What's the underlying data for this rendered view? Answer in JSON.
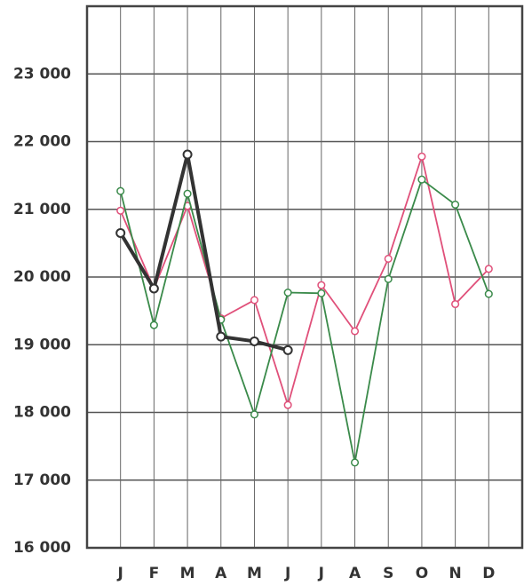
{
  "chart_data": {
    "type": "line",
    "categories": [
      "J",
      "F",
      "M",
      "A",
      "M",
      "J",
      "J",
      "A",
      "S",
      "O",
      "N",
      "D"
    ],
    "series": [
      {
        "color": "#e0507a",
        "values": [
          20980,
          19830,
          21050,
          19390,
          19660,
          18110,
          19880,
          19200,
          20270,
          21780,
          19600,
          20120
        ]
      },
      {
        "color": "#3a8a4a",
        "values": [
          21270,
          19290,
          21230,
          19370,
          17970,
          19770,
          19760,
          17260,
          19970,
          21440,
          21070,
          19750
        ]
      },
      {
        "color": "#333333",
        "values": [
          20650,
          19830,
          21810,
          19120,
          19050,
          18920,
          null,
          null,
          null,
          null,
          null,
          null
        ]
      }
    ],
    "ylim": [
      16000,
      24000
    ],
    "yticks": [
      {
        "value": 16000,
        "label": "16 000"
      },
      {
        "value": 17000,
        "label": "17 000"
      },
      {
        "value": 18000,
        "label": "18 000"
      },
      {
        "value": 19000,
        "label": "19 000"
      },
      {
        "value": 20000,
        "label": "20 000"
      },
      {
        "value": 21000,
        "label": "21 000"
      },
      {
        "value": 22000,
        "label": "22 000"
      },
      {
        "value": 23000,
        "label": "23 000"
      }
    ],
    "grid": true
  }
}
